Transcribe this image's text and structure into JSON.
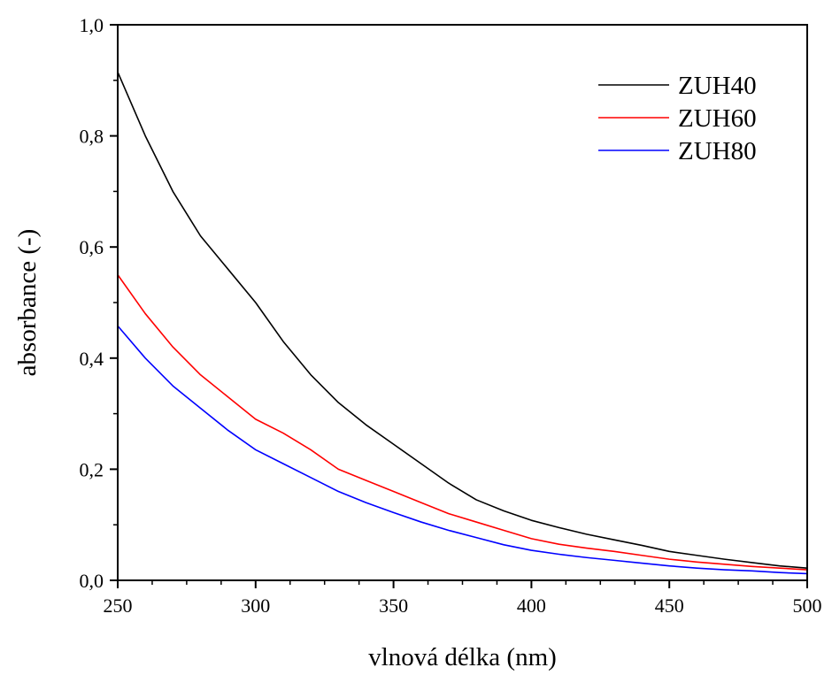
{
  "chart_data": {
    "type": "line",
    "xlabel": "vlnová délka (nm)",
    "ylabel": "absorbance (-)",
    "xlim": [
      250,
      500
    ],
    "ylim": [
      0.0,
      1.0
    ],
    "x_ticks": [
      250,
      300,
      350,
      400,
      450,
      500
    ],
    "x_tick_labels": [
      "250",
      "300",
      "350",
      "400",
      "450",
      "500"
    ],
    "y_ticks": [
      0.0,
      0.2,
      0.4,
      0.6,
      0.8,
      1.0
    ],
    "y_tick_labels": [
      "0,0",
      "0,2",
      "0,4",
      "0,6",
      "0,8",
      "1,0"
    ],
    "x_minor_step": 12.5,
    "y_minor_step": 0.1,
    "grid": false,
    "legend_position": "top-right",
    "x": [
      250,
      260,
      270,
      280,
      290,
      300,
      310,
      320,
      330,
      340,
      350,
      360,
      370,
      380,
      390,
      400,
      410,
      420,
      430,
      440,
      450,
      460,
      470,
      480,
      490,
      500
    ],
    "series": [
      {
        "name": "ZUH40",
        "color": "#000000",
        "values": [
          0.915,
          0.8,
          0.7,
          0.62,
          0.56,
          0.5,
          0.43,
          0.37,
          0.32,
          0.28,
          0.245,
          0.21,
          0.175,
          0.145,
          0.125,
          0.108,
          0.095,
          0.083,
          0.073,
          0.063,
          0.052,
          0.045,
          0.038,
          0.032,
          0.026,
          0.022
        ]
      },
      {
        "name": "ZUH60",
        "color": "#ff0000",
        "values": [
          0.55,
          0.48,
          0.42,
          0.37,
          0.33,
          0.29,
          0.265,
          0.235,
          0.2,
          0.18,
          0.16,
          0.14,
          0.12,
          0.105,
          0.09,
          0.075,
          0.065,
          0.058,
          0.052,
          0.045,
          0.038,
          0.033,
          0.029,
          0.025,
          0.022,
          0.019
        ]
      },
      {
        "name": "ZUH80",
        "color": "#0000ff",
        "values": [
          0.458,
          0.4,
          0.35,
          0.31,
          0.27,
          0.235,
          0.21,
          0.185,
          0.16,
          0.14,
          0.122,
          0.105,
          0.09,
          0.077,
          0.064,
          0.054,
          0.047,
          0.041,
          0.036,
          0.031,
          0.026,
          0.022,
          0.019,
          0.017,
          0.014,
          0.012
        ]
      }
    ]
  }
}
